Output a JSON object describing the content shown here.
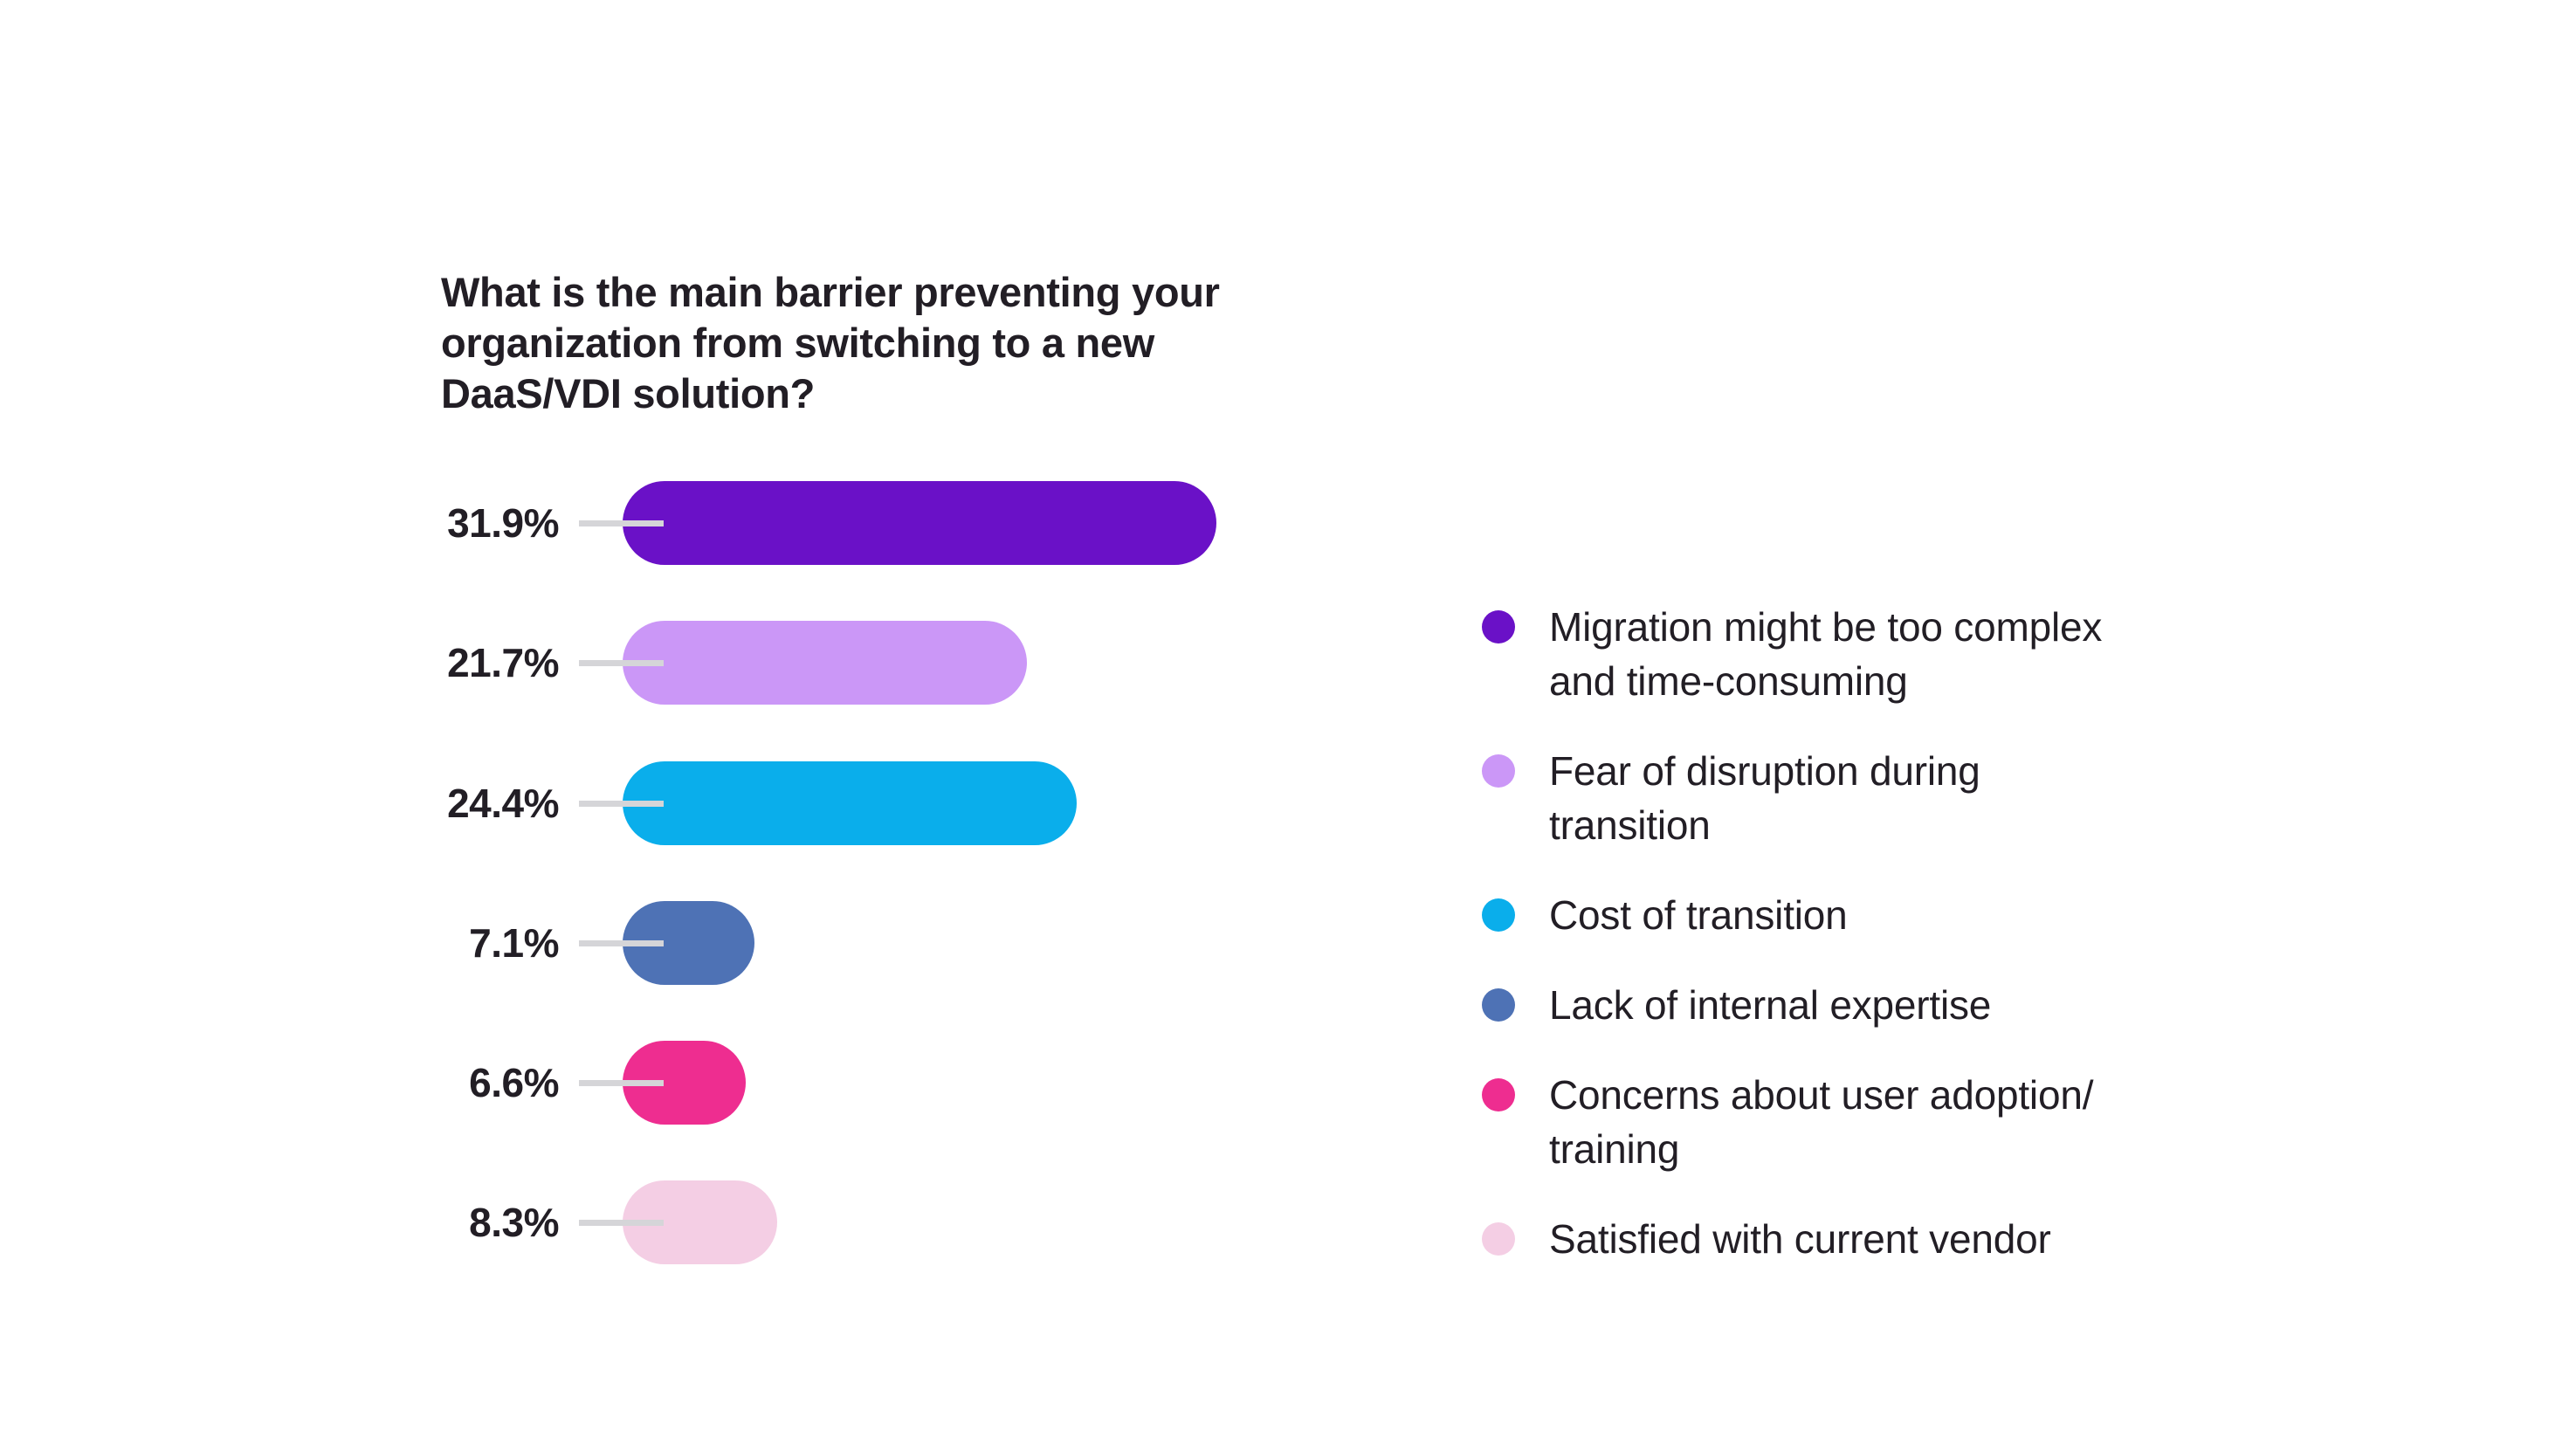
{
  "page": {
    "background": "#FFFFFF",
    "text_color": "#221E25"
  },
  "chart_data": {
    "type": "bar",
    "orientation": "horizontal",
    "title": "What is the main barrier preventing your organization from switching to a new DaaS/VDI solution?",
    "title_lines": [
      "What is the main barrier preventing your",
      "organization from switching to a new",
      "DaaS/VDI solution?"
    ],
    "categories": [
      "Migration might be too complex and time-consuming",
      "Fear of disruption during transition",
      "Cost of transition",
      "Lack of internal expertise",
      "Concerns about user adoption/training",
      "Satisfied with current vendor"
    ],
    "values": [
      31.9,
      21.7,
      24.4,
      7.1,
      6.6,
      8.3
    ],
    "value_labels": [
      "31.9%",
      "21.7%",
      "24.4%",
      "7.1%",
      "6.6%",
      "8.3%"
    ],
    "unit": "%",
    "xlim": [
      0,
      31.9
    ],
    "grid": false,
    "legend_position": "right",
    "colors": [
      "#6A11C7",
      "#CB97F7",
      "#0AAEEB",
      "#4E72B5",
      "#EE2D90",
      "#F4CEE4"
    ],
    "connector_color": "#D5D5D8"
  },
  "legend": {
    "items": [
      {
        "lines": [
          "Migration might be too complex",
          "and time-consuming"
        ],
        "label": "Migration might be too complex and time-consuming",
        "color": "#6A11C7"
      },
      {
        "lines": [
          "Fear of disruption during",
          "transition"
        ],
        "label": "Fear of disruption during transition",
        "color": "#CB97F7"
      },
      {
        "lines": [
          "Cost of transition"
        ],
        "label": "Cost of transition",
        "color": "#0AAEEB"
      },
      {
        "lines": [
          "Lack of internal expertise"
        ],
        "label": "Lack of internal expertise",
        "color": "#4E72B5"
      },
      {
        "lines": [
          "Concerns about user adoption/",
          "training"
        ],
        "label": "Concerns about user adoption/training",
        "color": "#EE2D90"
      },
      {
        "lines": [
          "Satisfied with current vendor"
        ],
        "label": "Satisfied with current vendor",
        "color": "#F4CEE4"
      }
    ]
  }
}
